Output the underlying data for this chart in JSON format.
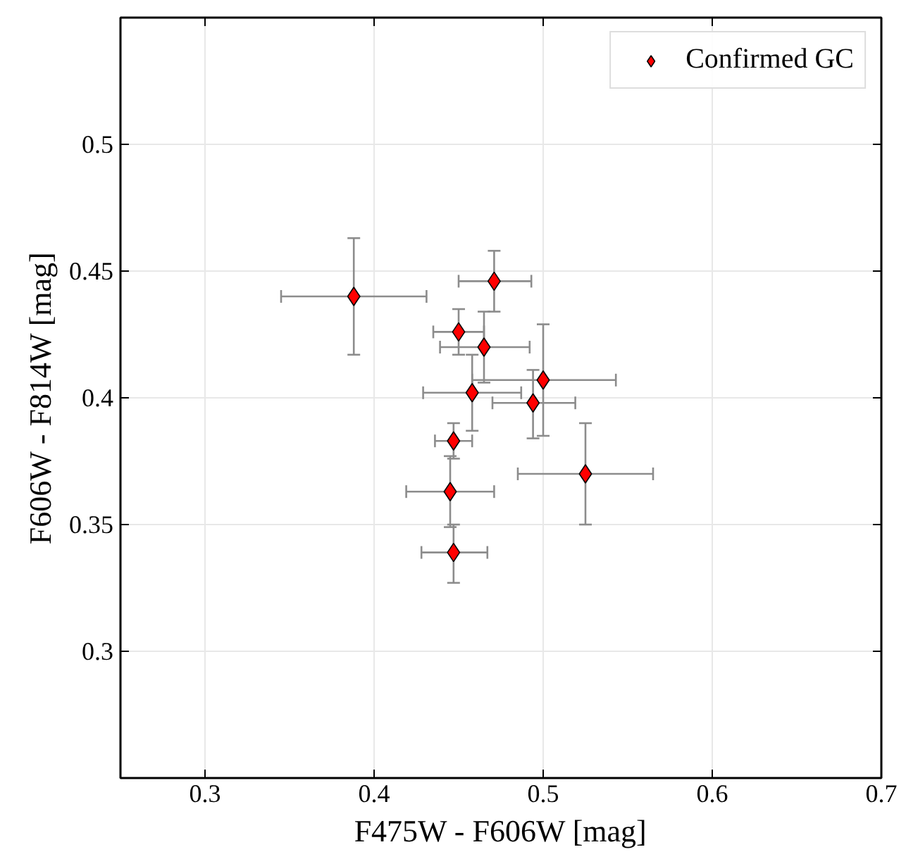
{
  "chart_data": {
    "type": "scatter",
    "xlabel": "F475W - F606W [mag]",
    "ylabel": "F606W - F814W [mag]",
    "xlim": [
      0.25,
      0.7
    ],
    "ylim": [
      0.25,
      0.55
    ],
    "xticks": [
      0.3,
      0.4,
      0.5,
      0.6,
      0.7
    ],
    "yticks": [
      0.3,
      0.35,
      0.4,
      0.45,
      0.5
    ],
    "grid": true,
    "legend": "top right",
    "marker": "diamond",
    "series": [
      {
        "name": "Confirmed GC",
        "color": "#ff0000",
        "x": [
          0.388,
          0.471,
          0.45,
          0.465,
          0.458,
          0.5,
          0.494,
          0.447,
          0.445,
          0.447,
          0.525
        ],
        "values": [
          0.44,
          0.446,
          0.426,
          0.42,
          0.402,
          0.407,
          0.398,
          0.383,
          0.363,
          0.339,
          0.37
        ],
        "xerrors": [
          [
            0.345,
            0.431
          ],
          [
            0.45,
            0.493
          ],
          [
            0.435,
            0.465
          ],
          [
            0.439,
            0.492
          ],
          [
            0.429,
            0.487
          ],
          [
            0.458,
            0.543
          ],
          [
            0.47,
            0.519
          ],
          [
            0.436,
            0.458
          ],
          [
            0.419,
            0.471
          ],
          [
            0.428,
            0.467
          ],
          [
            0.485,
            0.565
          ]
        ],
        "errors": [
          [
            0.417,
            0.463
          ],
          [
            0.434,
            0.458
          ],
          [
            0.417,
            0.435
          ],
          [
            0.406,
            0.434
          ],
          [
            0.387,
            0.417
          ],
          [
            0.385,
            0.429
          ],
          [
            0.384,
            0.411
          ],
          [
            0.376,
            0.39
          ],
          [
            0.349,
            0.377
          ],
          [
            0.327,
            0.35
          ],
          [
            0.35,
            0.39
          ]
        ]
      }
    ]
  }
}
